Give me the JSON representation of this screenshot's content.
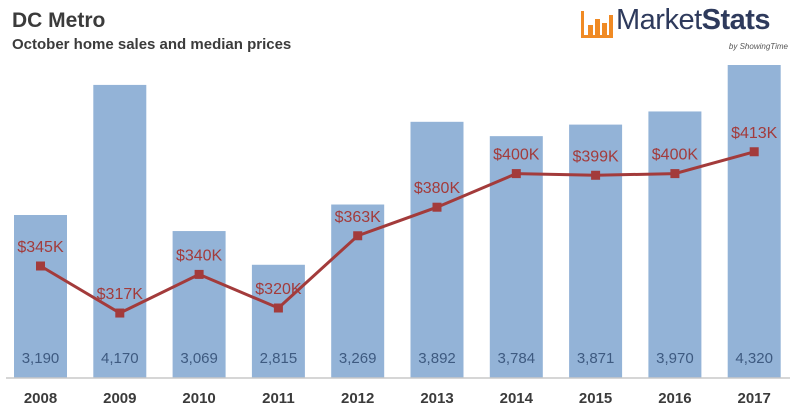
{
  "header": {
    "title": "DC Metro",
    "subtitle": "October home sales and median prices"
  },
  "logo": {
    "name_light": "Market",
    "name_bold": "Stats",
    "byline": "by ShowingTime",
    "icon": "bar-chart-icon",
    "color": "#f08a24"
  },
  "colors": {
    "bar": "#93b3d7",
    "line": "#a33b3b",
    "bar_label": "#3e5a80",
    "price_label": "#a33b3b",
    "axis": "#c8c8c8",
    "year_label": "#3b3b3b"
  },
  "chart_data": {
    "type": "bar",
    "title": "DC Metro",
    "subtitle": "October home sales and median prices",
    "xlabel": "",
    "ylabel": "",
    "categories": [
      "2008",
      "2009",
      "2010",
      "2011",
      "2012",
      "2013",
      "2014",
      "2015",
      "2016",
      "2017"
    ],
    "series": [
      {
        "name": "Home sales",
        "type": "bar",
        "values": [
          3190,
          4170,
          3069,
          2815,
          3269,
          3892,
          3784,
          3871,
          3970,
          4320
        ],
        "labels": [
          "3,190",
          "4,170",
          "3,069",
          "2,815",
          "3,269",
          "3,892",
          "3,784",
          "3,871",
          "3,970",
          "4,320"
        ],
        "ylim": [
          1962,
          4320
        ]
      },
      {
        "name": "Median price",
        "type": "line",
        "values": [
          345,
          317,
          340,
          320,
          363,
          380,
          400,
          399,
          400,
          413
        ],
        "labels": [
          "$345K",
          "$317K",
          "$340K",
          "$320K",
          "$363K",
          "$380K",
          "$400K",
          "$399K",
          "$400K",
          "$413K"
        ],
        "units": "thousands USD"
      }
    ],
    "grid": false,
    "legend": "none"
  }
}
